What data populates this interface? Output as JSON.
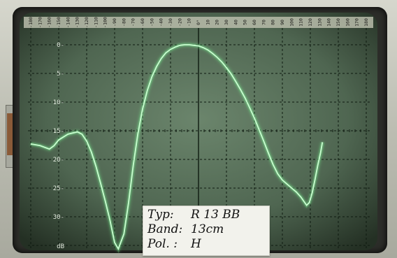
{
  "scale": {
    "top_ticks": [
      "-180",
      "-170",
      "-160",
      "-150",
      "-140",
      "-130",
      "-120",
      "-110",
      "-100",
      "-90",
      "-80",
      "-70",
      "-60",
      "-50",
      "-40",
      "-30",
      "-20",
      "-10",
      "0°",
      "10",
      "20",
      "30",
      "40",
      "50",
      "60",
      "70",
      "80",
      "90",
      "100",
      "110",
      "120",
      "130",
      "140",
      "150",
      "160",
      "170",
      "180"
    ],
    "left_ticks": [
      "0-",
      "5-",
      "10-",
      "15-",
      "20-",
      "25-",
      "30-",
      "dB"
    ]
  },
  "label": {
    "typ_key": "Typ:",
    "typ_value": "R 13 BB",
    "band_key": "Band:",
    "band_value": "13cm",
    "pol_key": "Pol. :",
    "pol_value": "H"
  },
  "colors": {
    "screen": "#556b58",
    "grid": "#0e1a10",
    "trace": "#c9ffd0",
    "trace_glow": "#7dff98"
  },
  "trace_points": [
    [
      -180,
      17.3
    ],
    [
      -170,
      17.6
    ],
    [
      -160,
      18.2
    ],
    [
      -155,
      17.6
    ],
    [
      -150,
      16.6
    ],
    [
      -140,
      15.6
    ],
    [
      -130,
      15.2
    ],
    [
      -125,
      15.6
    ],
    [
      -120,
      16.8
    ],
    [
      -115,
      18.7
    ],
    [
      -110,
      21.2
    ],
    [
      -105,
      24.2
    ],
    [
      -100,
      27.3
    ],
    [
      -95,
      30.6
    ],
    [
      -90,
      34.5
    ],
    [
      -86,
      36.5
    ],
    [
      -80,
      33.0
    ],
    [
      -75,
      27.5
    ],
    [
      -70,
      21.0
    ],
    [
      -65,
      15.5
    ],
    [
      -60,
      11.2
    ],
    [
      -55,
      8.0
    ],
    [
      -50,
      5.6
    ],
    [
      -45,
      3.8
    ],
    [
      -40,
      2.4
    ],
    [
      -35,
      1.4
    ],
    [
      -30,
      0.8
    ],
    [
      -25,
      0.4
    ],
    [
      -20,
      0.1
    ],
    [
      -15,
      0.0
    ],
    [
      -10,
      0.0
    ],
    [
      -5,
      0.1
    ],
    [
      0,
      0.2
    ],
    [
      5,
      0.5
    ],
    [
      10,
      0.9
    ],
    [
      15,
      1.5
    ],
    [
      20,
      2.2
    ],
    [
      25,
      3.0
    ],
    [
      30,
      4.0
    ],
    [
      35,
      5.1
    ],
    [
      40,
      6.4
    ],
    [
      45,
      7.8
    ],
    [
      50,
      9.3
    ],
    [
      55,
      11.0
    ],
    [
      60,
      12.8
    ],
    [
      65,
      14.8
    ],
    [
      70,
      16.8
    ],
    [
      75,
      18.9
    ],
    [
      80,
      20.9
    ],
    [
      85,
      22.5
    ],
    [
      90,
      23.6
    ],
    [
      95,
      24.3
    ],
    [
      100,
      25.0
    ],
    [
      105,
      25.7
    ],
    [
      110,
      26.6
    ],
    [
      113,
      27.3
    ],
    [
      116,
      28.0
    ],
    [
      119,
      27.5
    ],
    [
      122,
      25.8
    ],
    [
      125,
      23.5
    ],
    [
      128,
      21.0
    ],
    [
      131,
      18.8
    ],
    [
      133,
      17.0
    ]
  ]
}
